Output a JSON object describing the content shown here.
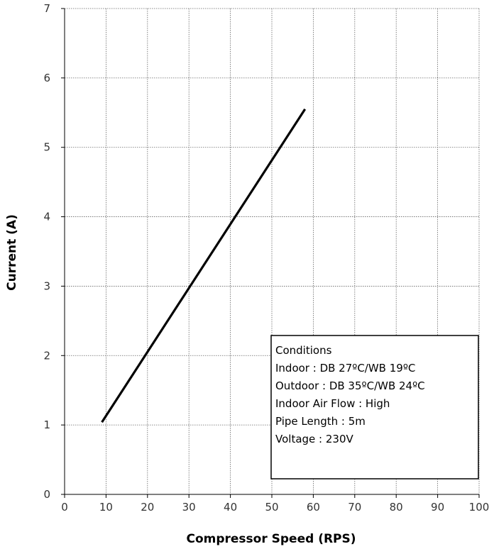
{
  "chart_data": {
    "type": "line",
    "xlabel": "Compressor Speed (RPS)",
    "ylabel": "Current (A)",
    "xlim": [
      0,
      100
    ],
    "ylim": [
      0,
      7
    ],
    "xticks": [
      0,
      10,
      20,
      30,
      40,
      50,
      60,
      70,
      80,
      90,
      100
    ],
    "yticks": [
      0,
      1,
      2,
      3,
      4,
      5,
      6,
      7
    ],
    "grid": true,
    "series": [
      {
        "x": [
          9,
          58
        ],
        "y": [
          1.04,
          5.55
        ],
        "color": "#000000"
      }
    ],
    "annotation": {
      "placement": "bottom-right",
      "lines": [
        "Conditions",
        "Indoor : DB 27ºC/WB 19ºC",
        "Outdoor : DB 35ºC/WB 24ºC",
        "Indoor Air Flow : High",
        "Pipe Length : 5m",
        "Voltage : 230V"
      ]
    }
  }
}
